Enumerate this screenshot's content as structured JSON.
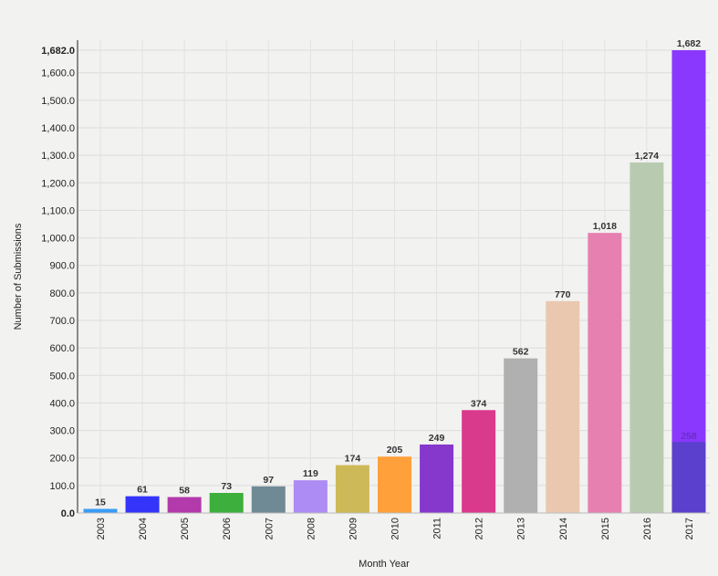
{
  "chart_data": {
    "type": "bar",
    "title": "",
    "xlabel": "Month Year",
    "ylabel": "Number of Submissions",
    "ylim": [
      0,
      1682
    ],
    "yticks": [
      "0.0",
      "100.0",
      "200.0",
      "300.0",
      "400.0",
      "500.0",
      "600.0",
      "700.0",
      "800.0",
      "900.0",
      "1,000.0",
      "1,100.0",
      "1,200.0",
      "1,300.0",
      "1,400.0",
      "1,500.0",
      "1,600.0",
      "1,682.0"
    ],
    "ytick_values": [
      0,
      100,
      200,
      300,
      400,
      500,
      600,
      700,
      800,
      900,
      1000,
      1100,
      1200,
      1300,
      1400,
      1500,
      1600,
      1682
    ],
    "categories": [
      "2003",
      "2004",
      "2005",
      "2006",
      "2007",
      "2008",
      "2009",
      "2010",
      "2011",
      "2012",
      "2013",
      "2014",
      "2015",
      "2016",
      "2017"
    ],
    "values": [
      15,
      61,
      58,
      73,
      97,
      119,
      174,
      205,
      249,
      374,
      562,
      770,
      1018,
      1274,
      1682
    ],
    "value_labels": [
      "15",
      "61",
      "58",
      "73",
      "97",
      "119",
      "174",
      "205",
      "249",
      "374",
      "562",
      "770",
      "1,018",
      "1,274",
      "1,682"
    ],
    "colors": [
      "#3a9cf5",
      "#3434fa",
      "#b23aaa",
      "#3caf3c",
      "#708a95",
      "#ad8cf4",
      "#cdb958",
      "#ffa03a",
      "#8638cc",
      "#da3a8c",
      "#b0b0b0",
      "#eac8b0",
      "#e680b0",
      "#b8cbb0",
      "#8a38fd"
    ],
    "overlay": {
      "category": "2017",
      "value": 258,
      "label": "258",
      "color": "#5a40cc"
    },
    "grid": true
  }
}
